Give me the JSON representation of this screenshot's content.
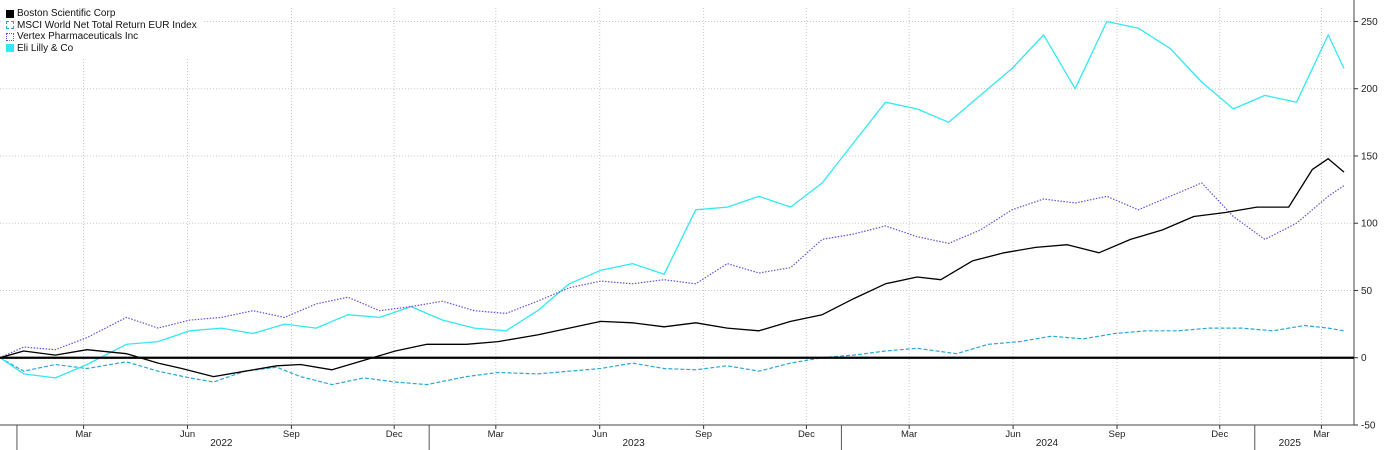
{
  "chart_data": {
    "type": "line",
    "title": "",
    "xlabel": "",
    "ylabel": "",
    "ylim": [
      -50,
      260
    ],
    "y_ticks": [
      -50,
      0,
      50,
      100,
      150,
      200,
      250
    ],
    "grid": true,
    "legend_position": "top-left",
    "x_range": [
      "2021-12-17",
      "2025-03-21"
    ],
    "month_ticks": [
      {
        "date": "2022-03-01",
        "label": "Mar"
      },
      {
        "date": "2022-06-01",
        "label": "Jun"
      },
      {
        "date": "2022-09-01",
        "label": "Sep"
      },
      {
        "date": "2022-12-01",
        "label": "Dec"
      },
      {
        "date": "2023-03-01",
        "label": "Mar"
      },
      {
        "date": "2023-06-01",
        "label": "Jun"
      },
      {
        "date": "2023-09-01",
        "label": "Sep"
      },
      {
        "date": "2023-12-01",
        "label": "Dec"
      },
      {
        "date": "2024-03-01",
        "label": "Mar"
      },
      {
        "date": "2024-06-01",
        "label": "Jun"
      },
      {
        "date": "2024-09-01",
        "label": "Sep"
      },
      {
        "date": "2024-12-01",
        "label": "Dec"
      },
      {
        "date": "2025-03-01",
        "label": "Mar"
      }
    ],
    "year_labels": [
      {
        "date": "2022-07-01",
        "label": "2022"
      },
      {
        "date": "2023-07-01",
        "label": "2023"
      },
      {
        "date": "2024-07-01",
        "label": "2024"
      },
      {
        "date": "2025-02-01",
        "label": "2025"
      }
    ],
    "year_separators": [
      "2022-01-01",
      "2023-01-01",
      "2024-01-01",
      "2025-01-01"
    ],
    "series": [
      {
        "name": "Boston Scientific Corp",
        "color": "#000000",
        "style": "solid",
        "x": [
          "2021-12-17",
          "2022-01-07",
          "2022-02-04",
          "2022-03-04",
          "2022-04-08",
          "2022-05-06",
          "2022-05-27",
          "2022-06-24",
          "2022-07-22",
          "2022-08-19",
          "2022-09-09",
          "2022-10-07",
          "2022-11-04",
          "2022-12-02",
          "2022-12-30",
          "2023-02-03",
          "2023-03-03",
          "2023-04-07",
          "2023-05-05",
          "2023-06-02",
          "2023-06-30",
          "2023-07-28",
          "2023-08-25",
          "2023-09-22",
          "2023-10-20",
          "2023-11-17",
          "2023-12-15",
          "2024-01-12",
          "2024-02-09",
          "2024-03-08",
          "2024-03-29",
          "2024-04-26",
          "2024-05-24",
          "2024-06-21",
          "2024-07-19",
          "2024-08-16",
          "2024-09-13",
          "2024-10-11",
          "2024-11-08",
          "2024-12-06",
          "2025-01-03",
          "2025-01-31",
          "2025-02-21",
          "2025-03-07",
          "2025-03-21"
        ],
        "values": [
          0,
          5,
          2,
          6,
          3,
          -4,
          -8,
          -14,
          -10,
          -6,
          -5,
          -9,
          -2,
          5,
          10,
          10,
          12,
          17,
          22,
          27,
          26,
          23,
          26,
          22,
          20,
          27,
          32,
          44,
          55,
          60,
          58,
          72,
          78,
          82,
          84,
          78,
          88,
          95,
          105,
          108,
          112,
          112,
          140,
          148,
          138
        ]
      },
      {
        "name": "MSCI World Net Total Return EUR Index",
        "color": "#29a7d6",
        "style": "dashed",
        "x": [
          "2021-12-17",
          "2022-01-07",
          "2022-02-04",
          "2022-03-04",
          "2022-04-08",
          "2022-05-06",
          "2022-06-03",
          "2022-06-24",
          "2022-07-22",
          "2022-08-19",
          "2022-09-09",
          "2022-10-07",
          "2022-11-04",
          "2022-12-02",
          "2022-12-30",
          "2023-02-03",
          "2023-03-03",
          "2023-04-07",
          "2023-05-05",
          "2023-06-02",
          "2023-06-30",
          "2023-07-28",
          "2023-08-25",
          "2023-09-22",
          "2023-10-20",
          "2023-11-17",
          "2023-12-15",
          "2024-01-12",
          "2024-02-09",
          "2024-03-08",
          "2024-04-12",
          "2024-05-10",
          "2024-06-07",
          "2024-07-05",
          "2024-08-02",
          "2024-08-30",
          "2024-09-27",
          "2024-10-25",
          "2024-11-22",
          "2024-12-20",
          "2025-01-17",
          "2025-02-14",
          "2025-03-07",
          "2025-03-21"
        ],
        "values": [
          0,
          -10,
          -5,
          -8,
          -3,
          -10,
          -15,
          -18,
          -10,
          -7,
          -14,
          -20,
          -15,
          -18,
          -20,
          -14,
          -11,
          -12,
          -10,
          -8,
          -4,
          -8,
          -9,
          -6,
          -10,
          -4,
          0,
          2,
          5,
          7,
          3,
          10,
          12,
          16,
          14,
          18,
          20,
          20,
          22,
          22,
          20,
          24,
          22,
          20
        ]
      },
      {
        "name": "Vertex Pharmaceuticals Inc",
        "color": "#6c4fd6",
        "style": "dotted",
        "x": [
          "2021-12-17",
          "2022-01-07",
          "2022-02-04",
          "2022-03-04",
          "2022-04-08",
          "2022-05-06",
          "2022-06-03",
          "2022-07-01",
          "2022-07-29",
          "2022-08-26",
          "2022-09-23",
          "2022-10-21",
          "2022-11-18",
          "2022-12-16",
          "2023-01-13",
          "2023-02-10",
          "2023-03-10",
          "2023-04-07",
          "2023-05-05",
          "2023-06-02",
          "2023-06-30",
          "2023-07-28",
          "2023-08-25",
          "2023-09-22",
          "2023-10-20",
          "2023-11-17",
          "2023-12-15",
          "2024-01-12",
          "2024-02-09",
          "2024-03-08",
          "2024-04-05",
          "2024-05-03",
          "2024-05-31",
          "2024-06-28",
          "2024-07-26",
          "2024-08-23",
          "2024-09-20",
          "2024-10-18",
          "2024-11-15",
          "2024-12-13",
          "2025-01-10",
          "2025-02-07",
          "2025-03-07",
          "2025-03-21"
        ],
        "values": [
          0,
          8,
          6,
          15,
          30,
          22,
          28,
          30,
          35,
          30,
          40,
          45,
          35,
          38,
          42,
          35,
          33,
          42,
          52,
          57,
          55,
          58,
          55,
          70,
          63,
          67,
          88,
          92,
          98,
          90,
          85,
          95,
          110,
          118,
          115,
          120,
          110,
          120,
          130,
          105,
          88,
          100,
          120,
          128
        ]
      },
      {
        "name": "Eli Lilly & Co",
        "color": "#33e8f0",
        "style": "solid",
        "x": [
          "2021-12-17",
          "2022-01-07",
          "2022-02-04",
          "2022-03-04",
          "2022-04-08",
          "2022-05-06",
          "2022-06-03",
          "2022-07-01",
          "2022-07-29",
          "2022-08-26",
          "2022-09-23",
          "2022-10-21",
          "2022-11-18",
          "2022-12-16",
          "2023-01-13",
          "2023-02-10",
          "2023-03-10",
          "2023-04-07",
          "2023-05-05",
          "2023-06-02",
          "2023-06-30",
          "2023-07-28",
          "2023-08-25",
          "2023-09-22",
          "2023-10-20",
          "2023-11-17",
          "2023-12-15",
          "2024-01-12",
          "2024-02-09",
          "2024-03-08",
          "2024-04-05",
          "2024-05-03",
          "2024-05-31",
          "2024-06-28",
          "2024-07-26",
          "2024-08-23",
          "2024-09-20",
          "2024-10-18",
          "2024-11-15",
          "2024-12-13",
          "2025-01-10",
          "2025-02-07",
          "2025-03-07",
          "2025-03-21"
        ],
        "values": [
          0,
          -12,
          -15,
          -5,
          10,
          12,
          20,
          22,
          18,
          25,
          22,
          32,
          30,
          38,
          28,
          22,
          20,
          35,
          55,
          65,
          70,
          62,
          110,
          112,
          120,
          112,
          130,
          160,
          190,
          185,
          175,
          195,
          215,
          240,
          200,
          250,
          245,
          230,
          205,
          185,
          195,
          190,
          240,
          215
        ]
      }
    ]
  }
}
